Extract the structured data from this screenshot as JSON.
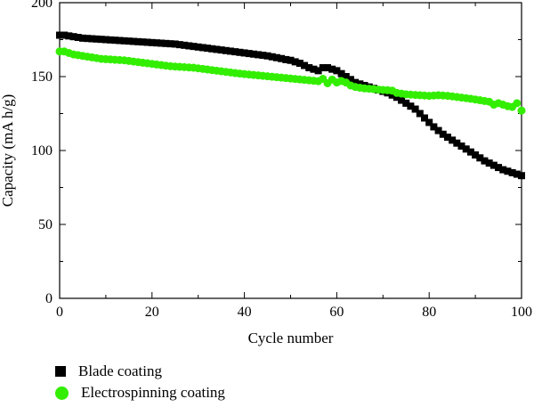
{
  "chart_data": {
    "type": "scatter",
    "xlabel": "Cycle number",
    "ylabel": "Capacity (mA h/g)",
    "xlim": [
      0,
      100
    ],
    "ylim": [
      0,
      200
    ],
    "x_ticks": [
      "0",
      "20",
      "40",
      "60",
      "80",
      "100"
    ],
    "y_ticks": [
      "0",
      "50",
      "100",
      "150",
      "200"
    ],
    "grid": false,
    "legend_position": "bottom-left, below plot",
    "series": [
      {
        "name": "Blade coating",
        "color": "#000000",
        "marker": "square",
        "x": [
          0,
          1,
          2,
          3,
          4,
          5,
          6,
          7,
          8,
          9,
          10,
          11,
          12,
          13,
          14,
          15,
          16,
          17,
          18,
          19,
          20,
          21,
          22,
          23,
          24,
          25,
          26,
          27,
          28,
          29,
          30,
          31,
          32,
          33,
          34,
          35,
          36,
          37,
          38,
          39,
          40,
          41,
          42,
          43,
          44,
          45,
          46,
          47,
          48,
          49,
          50,
          51,
          52,
          53,
          54,
          55,
          56,
          57,
          58,
          59,
          60,
          61,
          62,
          63,
          64,
          65,
          66,
          67,
          68,
          69,
          70,
          71,
          72,
          73,
          74,
          75,
          76,
          77,
          78,
          79,
          80,
          81,
          82,
          83,
          84,
          85,
          86,
          87,
          88,
          89,
          90,
          91,
          92,
          93,
          94,
          95,
          96,
          97,
          98,
          99,
          100
        ],
        "values": [
          178,
          178,
          177.5,
          177,
          176.5,
          176,
          175.8,
          175.6,
          175.4,
          175.2,
          175,
          174.8,
          174.6,
          174.4,
          174.2,
          174,
          173.8,
          173.6,
          173.4,
          173.2,
          173,
          172.8,
          172.6,
          172.4,
          172.2,
          172,
          171.6,
          171.2,
          170.8,
          170.4,
          170,
          169.6,
          169.2,
          168.8,
          168.4,
          168,
          167.6,
          167.2,
          166.8,
          166.4,
          166,
          165.6,
          165.2,
          164.8,
          164.4,
          164,
          163.4,
          162.8,
          162.2,
          161.5,
          161,
          160,
          159,
          157.5,
          156,
          155,
          154,
          156,
          156,
          155,
          154,
          152,
          150,
          148,
          146,
          145,
          144,
          143,
          142,
          141,
          140,
          139,
          137.5,
          136,
          134,
          132,
          130,
          128,
          125,
          122,
          119,
          116,
          113.5,
          111,
          109,
          107,
          105,
          103,
          101,
          99,
          97,
          95,
          93,
          91.5,
          90,
          88.5,
          87,
          86,
          85,
          84,
          83
        ]
      },
      {
        "name": "Electrospinning coating",
        "color": "#33ee00",
        "marker": "circle",
        "x": [
          0,
          1,
          2,
          3,
          4,
          5,
          6,
          7,
          8,
          9,
          10,
          11,
          12,
          13,
          14,
          15,
          16,
          17,
          18,
          19,
          20,
          21,
          22,
          23,
          24,
          25,
          26,
          27,
          28,
          29,
          30,
          31,
          32,
          33,
          34,
          35,
          36,
          37,
          38,
          39,
          40,
          41,
          42,
          43,
          44,
          45,
          46,
          47,
          48,
          49,
          50,
          51,
          52,
          53,
          54,
          55,
          56,
          57,
          58,
          59,
          60,
          61,
          62,
          63,
          64,
          65,
          66,
          67,
          68,
          69,
          70,
          71,
          72,
          73,
          74,
          75,
          76,
          77,
          78,
          79,
          80,
          81,
          82,
          83,
          84,
          85,
          86,
          87,
          88,
          89,
          90,
          91,
          92,
          93,
          94,
          95,
          96,
          97,
          98,
          99,
          100
        ],
        "values": [
          167,
          167,
          166,
          165,
          164.5,
          164,
          163.5,
          163,
          162.5,
          162,
          161.8,
          161.6,
          161.4,
          161.2,
          161,
          160.6,
          160.2,
          159.8,
          159.4,
          159,
          158.6,
          158.2,
          157.8,
          157.4,
          157,
          156.8,
          156.6,
          156.4,
          156.2,
          156,
          155.6,
          155.2,
          154.8,
          154.4,
          154,
          153.6,
          153.2,
          152.8,
          152.4,
          152,
          151.7,
          151.4,
          151.1,
          150.8,
          150.5,
          150.2,
          149.9,
          149.6,
          149.3,
          149,
          148.7,
          148.4,
          148.1,
          147.8,
          147.5,
          147.2,
          146.9,
          148.5,
          145.5,
          148,
          146,
          147,
          146,
          144,
          143,
          142.5,
          142,
          141.8,
          141.5,
          141.2,
          141,
          140.8,
          140.5,
          139,
          138.5,
          138,
          137.8,
          137.6,
          137.4,
          137.2,
          137,
          137.2,
          137.4,
          137.2,
          137,
          136.6,
          136.2,
          135.8,
          135.4,
          135,
          134.5,
          134,
          133.5,
          133,
          131,
          132,
          131,
          130,
          129.5,
          132,
          127
        ]
      }
    ]
  }
}
